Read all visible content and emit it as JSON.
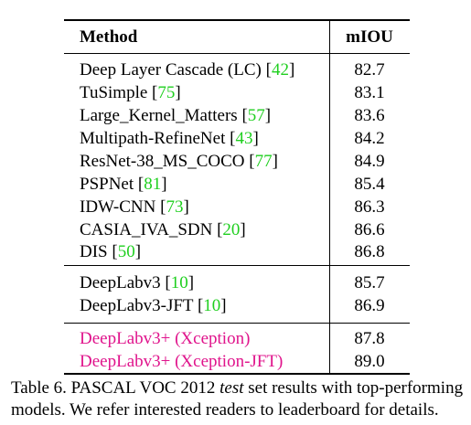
{
  "table": {
    "header": {
      "method": "Method",
      "score": "mIOU"
    },
    "group1": [
      {
        "name": "Deep Layer Cascade (LC) ",
        "ref": "42",
        "score": "82.7"
      },
      {
        "name": "TuSimple ",
        "ref": "75",
        "score": "83.1"
      },
      {
        "name": "Large_Kernel_Matters ",
        "ref": "57",
        "score": "83.6"
      },
      {
        "name": "Multipath-RefineNet ",
        "ref": "43",
        "score": "84.2"
      },
      {
        "name": "ResNet-38_MS_COCO ",
        "ref": "77",
        "score": "84.9"
      },
      {
        "name": "PSPNet ",
        "ref": "81",
        "score": "85.4"
      },
      {
        "name": "IDW-CNN ",
        "ref": "73",
        "score": "86.3"
      },
      {
        "name": "CASIA_IVA_SDN ",
        "ref": "20",
        "score": "86.6"
      },
      {
        "name": "DIS ",
        "ref": "50",
        "score": "86.8"
      }
    ],
    "group2": [
      {
        "name": "DeepLabv3 ",
        "ref": "10",
        "score": "85.7"
      },
      {
        "name": "DeepLabv3-JFT ",
        "ref": "10",
        "score": "86.9"
      }
    ],
    "group3": [
      {
        "name": "DeepLabv3+ (Xception)",
        "score": "87.8"
      },
      {
        "name": "DeepLabv3+ (Xception-JFT)",
        "score": "89.0"
      }
    ]
  },
  "caption": {
    "prefix": "Table 6. PASCAL VOC 2012 ",
    "emph": "test",
    "suffix": " set results with top-performing models. We refer interested readers to leaderboard for details."
  },
  "colors": {
    "citation": "#1fcf1f",
    "ours": "#e0148c"
  }
}
